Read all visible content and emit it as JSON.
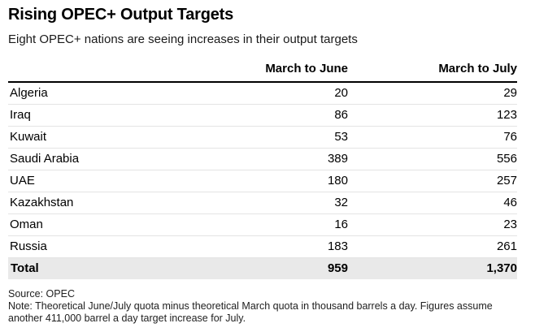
{
  "title": "Rising OPEC+ Output Targets",
  "subtitle": "Eight OPEC+ nations are seeing increases in their output targets",
  "footer": {
    "source": "Source: OPEC",
    "note": "Note: Theoretical June/July quota minus theoretical March quota in thousand barrels a day. Figures assume another 411,000 barrel a day target increase for July."
  },
  "colors": {
    "text": "#000000",
    "header_rule": "#000000",
    "row_divider": "#e4e4e4",
    "total_row_background": "#e9e9e9",
    "background": "#ffffff"
  },
  "chart_data": {
    "type": "table",
    "title": "Rising OPEC+ Output Targets",
    "subtitle": "Eight OPEC+ nations are seeing increases in their output targets",
    "columns": [
      "",
      "March to June",
      "March to July"
    ],
    "rows": [
      {
        "label": "Algeria",
        "march_to_june": "20",
        "march_to_july": "29"
      },
      {
        "label": "Iraq",
        "march_to_june": "86",
        "march_to_july": "123"
      },
      {
        "label": "Kuwait",
        "march_to_june": "53",
        "march_to_july": "76"
      },
      {
        "label": "Saudi Arabia",
        "march_to_june": "389",
        "march_to_july": "556"
      },
      {
        "label": "UAE",
        "march_to_june": "180",
        "march_to_july": "257"
      },
      {
        "label": "Kazakhstan",
        "march_to_june": "32",
        "march_to_july": "46"
      },
      {
        "label": "Oman",
        "march_to_june": "16",
        "march_to_july": "23"
      },
      {
        "label": "Russia",
        "march_to_june": "183",
        "march_to_july": "261"
      }
    ],
    "total": {
      "label": "Total",
      "march_to_june": "959",
      "march_to_july": "1,370"
    },
    "source": "Source: OPEC",
    "note": "Note: Theoretical June/July quota minus theoretical March quota in thousand barrels a day. Figures assume another 411,000 barrel a day target increase for July."
  }
}
